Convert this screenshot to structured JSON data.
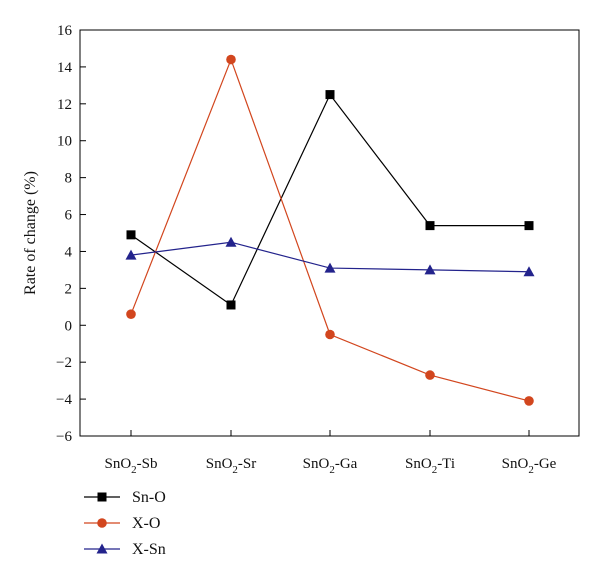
{
  "chart_data": {
    "type": "line",
    "title": "",
    "xlabel": "",
    "ylabel": "Rate of change (%)",
    "categories": [
      {
        "base": "SnO",
        "sub": "2",
        "suffix": "-Sb"
      },
      {
        "base": "SnO",
        "sub": "2",
        "suffix": "-Sr"
      },
      {
        "base": "SnO",
        "sub": "2",
        "suffix": "-Ga"
      },
      {
        "base": "SnO",
        "sub": "2",
        "suffix": "-Ti"
      },
      {
        "base": "SnO",
        "sub": "2",
        "suffix": "-Ge"
      }
    ],
    "ylim": [
      -6,
      16
    ],
    "yticks": [
      -6,
      -4,
      -2,
      0,
      2,
      4,
      6,
      8,
      10,
      12,
      14,
      16
    ],
    "grid": false,
    "legend_position": "bottom-left",
    "series": [
      {
        "name": "Sn-O",
        "values": [
          4.9,
          1.1,
          12.5,
          5.4,
          5.4
        ],
        "color": "#000000",
        "marker": "square"
      },
      {
        "name": "X-O",
        "values": [
          0.6,
          14.4,
          -0.5,
          -2.7,
          -4.1
        ],
        "color": "#d2461e",
        "marker": "circle"
      },
      {
        "name": "X-Sn",
        "values": [
          3.8,
          4.5,
          3.1,
          3.0,
          2.9
        ],
        "color": "#23238c",
        "marker": "triangle"
      }
    ]
  }
}
